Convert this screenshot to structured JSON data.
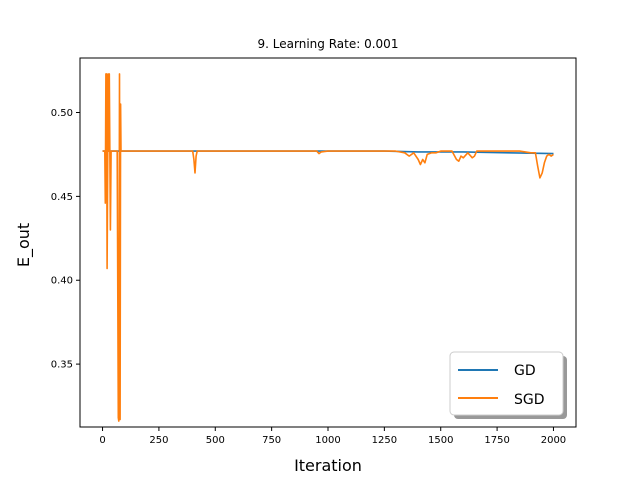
{
  "chart_data": {
    "type": "line",
    "title": "9. Learning Rate: 0.001",
    "xlabel": "Iteration",
    "ylabel": "E_out",
    "xlim": [
      -100,
      2100
    ],
    "ylim": [
      0.3125,
      0.5325
    ],
    "xticks": [
      0,
      250,
      500,
      750,
      1000,
      1250,
      1500,
      1750,
      2000
    ],
    "yticks": [
      0.35,
      0.4,
      0.45,
      0.5
    ],
    "ytick_labels": [
      "0.35",
      "0.40",
      "0.45",
      "0.50"
    ],
    "legend_position": "lower-right",
    "series": [
      {
        "name": "GD",
        "color": "#1f77b4",
        "x": [
          0,
          250,
          500,
          750,
          1000,
          1250,
          1400,
          1600,
          1800,
          2000
        ],
        "y": [
          0.477,
          0.477,
          0.477,
          0.477,
          0.477,
          0.477,
          0.4765,
          0.4765,
          0.476,
          0.4755
        ]
      },
      {
        "name": "SGD",
        "color": "#ff7f0e",
        "x": [
          0,
          5,
          10,
          12,
          15,
          18,
          20,
          25,
          28,
          30,
          35,
          38,
          40,
          45,
          50,
          55,
          60,
          65,
          70,
          72,
          75,
          78,
          80,
          82,
          85,
          90,
          100,
          150,
          200,
          300,
          400,
          405,
          410,
          415,
          420,
          430,
          500,
          600,
          700,
          800,
          900,
          950,
          960,
          970,
          1000,
          1100,
          1200,
          1300,
          1340,
          1360,
          1380,
          1400,
          1410,
          1420,
          1430,
          1440,
          1460,
          1480,
          1500,
          1550,
          1570,
          1580,
          1590,
          1600,
          1620,
          1640,
          1650,
          1660,
          1680,
          1700,
          1750,
          1800,
          1850,
          1900,
          1920,
          1930,
          1940,
          1950,
          1960,
          1970,
          1980,
          1990,
          2000
        ],
        "y": [
          0.477,
          0.477,
          0.477,
          0.446,
          0.523,
          0.523,
          0.407,
          0.523,
          0.477,
          0.523,
          0.43,
          0.477,
          0.477,
          0.477,
          0.477,
          0.477,
          0.477,
          0.477,
          0.318,
          0.316,
          0.523,
          0.317,
          0.505,
          0.477,
          0.477,
          0.477,
          0.477,
          0.477,
          0.477,
          0.477,
          0.477,
          0.472,
          0.464,
          0.474,
          0.477,
          0.477,
          0.477,
          0.477,
          0.477,
          0.477,
          0.477,
          0.477,
          0.4755,
          0.4765,
          0.477,
          0.477,
          0.477,
          0.477,
          0.476,
          0.474,
          0.476,
          0.472,
          0.469,
          0.472,
          0.47,
          0.475,
          0.476,
          0.476,
          0.477,
          0.477,
          0.472,
          0.471,
          0.474,
          0.473,
          0.476,
          0.473,
          0.474,
          0.477,
          0.477,
          0.477,
          0.477,
          0.477,
          0.477,
          0.476,
          0.476,
          0.468,
          0.461,
          0.464,
          0.47,
          0.474,
          0.475,
          0.474,
          0.475
        ]
      }
    ]
  }
}
